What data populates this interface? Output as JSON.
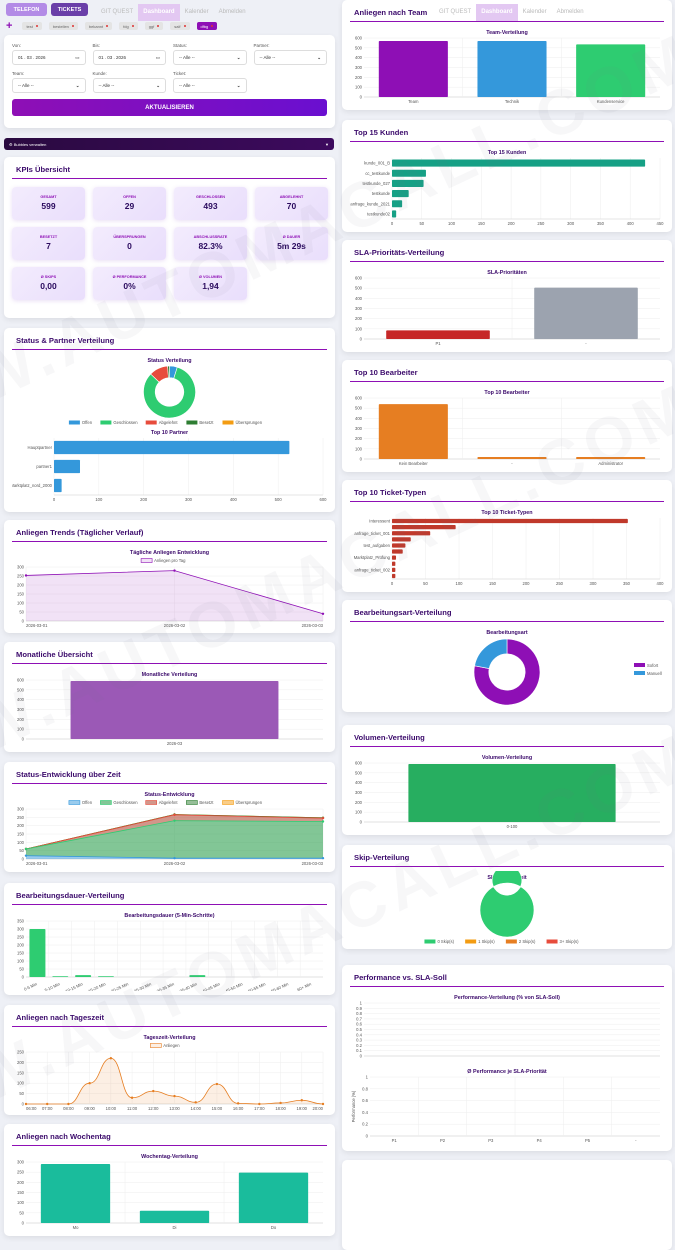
{
  "watermark": "WWW.AUTOMACALL.COM",
  "nav": {
    "telefon": "TELEFON",
    "tickets": "TICKETS",
    "links": [
      "GIT QUEST",
      "Dashboard",
      "Kalender",
      "Abmelden"
    ],
    "active": "Dashboard"
  },
  "chips": {
    "add": "+",
    "items": [
      "test",
      "bestellen",
      "bekannt",
      "fdg",
      "ggf",
      "salf",
      "dfbg"
    ],
    "active": "dfbg"
  },
  "filter": {
    "von_label": "Von:",
    "von": "01 . 03 . 2026",
    "bis_label": "Bis:",
    "bis": "01 . 03 . 2026",
    "status_label": "Status:",
    "partner_label": "Partner:",
    "team_label": "Team:",
    "kunde_label": "Kunde:",
    "ticket_label": "Ticket:",
    "all": "-- Alle --",
    "submit": "AKTUALISIEREN"
  },
  "collapse": {
    "label": "⚙ Bubbles verwalten",
    "arrow": "▼"
  },
  "kpis": {
    "title": "KPIs Übersicht",
    "items": [
      {
        "label": "Gesamt",
        "value": "599"
      },
      {
        "label": "Offen",
        "value": "29"
      },
      {
        "label": "Geschlossen",
        "value": "493"
      },
      {
        "label": "Abgelehnt",
        "value": "70"
      },
      {
        "label": "Besetzt",
        "value": "7"
      },
      {
        "label": "Übersprungen",
        "value": "0"
      },
      {
        "label": "Abschlussrate",
        "value": "82.3%"
      },
      {
        "label": "Ø Dauer",
        "value": "5m 29s"
      },
      {
        "label": "Ø Skips",
        "value": "0,00"
      },
      {
        "label": "Ø Performance",
        "value": "0%"
      },
      {
        "label": "Ø Volumen",
        "value": "1,94"
      }
    ]
  },
  "sections": {
    "status_partner": "Status & Partner Verteilung",
    "trends": "Anliegen Trends (Täglicher Verlauf)",
    "monthly": "Monatliche Übersicht",
    "status_time": "Status-Entwicklung über Zeit",
    "duration": "Bearbeitungsdauer-Verteilung",
    "daytime": "Anliegen nach Tageszeit",
    "weekday": "Anliegen nach Wochentag",
    "team": "Anliegen nach Team",
    "customers": "Top 15 Kunden",
    "sla": "SLA-Prioritäts-Verteilung",
    "agents": "Top 10 Bearbeiter",
    "tickettypes": "Top 10 Ticket-Typen",
    "mode": "Bearbeitungsart-Verteilung",
    "volume": "Volumen-Verteilung",
    "skip": "Skip-Verteilung",
    "performance": "Performance vs. SLA-Soll"
  },
  "chart_data": [
    {
      "id": "status",
      "type": "pie",
      "donut": true,
      "title": "Status Verteilung",
      "labels": [
        "Offen",
        "Geschlossen",
        "Abgelehnt",
        "Besetzt",
        "Übersprungen"
      ],
      "values": [
        29,
        493,
        70,
        7,
        0
      ],
      "colors": [
        "#3498db",
        "#2ecc71",
        "#e74c3c",
        "#2e7d32",
        "#f39c12"
      ],
      "legend": "bottom"
    },
    {
      "id": "partner",
      "type": "bar",
      "orientation": "horizontal",
      "title": "Top 10 Partner",
      "categories": [
        "Hauptpartner",
        "partner1",
        "Marktplatz_nord_2000"
      ],
      "values": [
        525,
        58,
        17
      ],
      "xlim": [
        0,
        600
      ],
      "ticks": [
        "0",
        "100",
        "200",
        "300",
        "400",
        "500",
        "600"
      ],
      "color": "#3498db"
    },
    {
      "id": "trends",
      "type": "area",
      "title": "Tägliche Anliegen Entwicklung",
      "categories": [
        "2026-03-01",
        "2026-03-02",
        "2026-03-03"
      ],
      "series": [
        {
          "name": "Anliegen pro Tag",
          "values": [
            253,
            280,
            40
          ],
          "color": "#8e0fb5",
          "fill": "rgba(142,15,181,0.12)"
        }
      ],
      "ylim": [
        0,
        300
      ],
      "ticks": [
        "0",
        "50",
        "100",
        "150",
        "200",
        "250",
        "300"
      ],
      "legend": "top"
    },
    {
      "id": "monthly",
      "type": "bar",
      "title": "Monatliche Verteilung",
      "categories": [
        "2026-03"
      ],
      "values": [
        590
      ],
      "ylim": [
        0,
        600
      ],
      "ticks": [
        "0",
        "100",
        "200",
        "300",
        "400",
        "500",
        "600"
      ],
      "color": "#9b59b6"
    },
    {
      "id": "statustime",
      "type": "area",
      "stacked": true,
      "title": "Status-Entwicklung",
      "categories": [
        "2026-03-01",
        "2026-03-02",
        "2026-03-03"
      ],
      "series": [
        {
          "name": "Offen",
          "values": [
            20,
            5,
            5
          ],
          "color": "#3498db",
          "fill": "rgba(52,152,219,0.5)"
        },
        {
          "name": "Geschlossen",
          "values": [
            40,
            225,
            220
          ],
          "color": "#2ecc71",
          "fill": "rgba(46,160,80,0.6)"
        },
        {
          "name": "Abgelehnt",
          "values": [
            0,
            35,
            20
          ],
          "color": "#e74c3c",
          "fill": "rgba(180,80,60,0.6)"
        },
        {
          "name": "Besetzt",
          "values": [
            0,
            2,
            2
          ],
          "color": "#2e7d32",
          "fill": "rgba(46,125,50,0.5)"
        },
        {
          "name": "Übersprungen",
          "values": [
            0,
            0,
            0
          ],
          "color": "#f39c12",
          "fill": "rgba(243,156,18,0.5)"
        }
      ],
      "ylim": [
        0,
        300
      ],
      "ticks": [
        "0",
        "50",
        "100",
        "150",
        "200",
        "250",
        "300"
      ],
      "legend": "top"
    },
    {
      "id": "duration",
      "type": "bar",
      "title": "Bearbeitungsdauer (5-Min-Schritte)",
      "categories": [
        "0-5 Min",
        "5-10 Min",
        "10-15 Min",
        "15-20 Min",
        "20-25 Min",
        "25-30 Min",
        "30-35 Min",
        "35-40 Min",
        "40-45 Min",
        "45-50 Min",
        "50-55 Min",
        "55-60 Min",
        "60+ Min"
      ],
      "values": [
        300,
        5,
        12,
        5,
        0,
        0,
        0,
        12,
        0,
        0,
        0,
        0,
        0
      ],
      "ylim": [
        0,
        350
      ],
      "ticks": [
        "0",
        "50",
        "100",
        "150",
        "200",
        "250",
        "300",
        "350"
      ],
      "color": "#2ecc71",
      "rotate": true
    },
    {
      "id": "daytime",
      "type": "area",
      "smooth": true,
      "title": "Tageszeit-Verteilung",
      "categories": [
        "06:00",
        "07:00",
        "08:00",
        "09:00",
        "10:00",
        "11:00",
        "12:00",
        "13:00",
        "14:00",
        "15:00",
        "16:00",
        "17:00",
        "18:00",
        "19:00",
        "20:00"
      ],
      "series": [
        {
          "name": "Anliegen",
          "values": [
            0,
            0,
            0,
            100,
            220,
            30,
            62,
            38,
            8,
            96,
            3,
            0,
            5,
            18,
            0
          ],
          "color": "#e67e22",
          "fill": "rgba(230,126,34,0.12)"
        }
      ],
      "ylim": [
        0,
        250
      ],
      "ticks": [
        "0",
        "50",
        "100",
        "150",
        "200",
        "250"
      ],
      "legend": "top"
    },
    {
      "id": "weekday",
      "type": "bar",
      "title": "Wochentag-Verteilung",
      "categories": [
        "Mo",
        "Di",
        "Do"
      ],
      "values": [
        290,
        60,
        248
      ],
      "ylim": [
        0,
        300
      ],
      "ticks": [
        "0",
        "50",
        "100",
        "150",
        "200",
        "250",
        "300"
      ],
      "color": "#1abc9c"
    },
    {
      "id": "team",
      "type": "bar",
      "title": "Team-Verteilung",
      "categories": [
        "Team",
        "Technik",
        "Kundenservice"
      ],
      "values": [
        570,
        570,
        535
      ],
      "ylim": [
        0,
        600
      ],
      "ticks": [
        "0",
        "100",
        "200",
        "300",
        "400",
        "500",
        "600"
      ],
      "colors": [
        "#8e0fb5",
        "#3498db",
        "#2ecc71"
      ]
    },
    {
      "id": "customers",
      "type": "bar",
      "orientation": "horizontal",
      "title": "Top 15 Kunden",
      "categories": [
        "kunde_001_B",
        "cc_testkunde",
        "testkunde_027",
        "testkunde",
        "anfrage_kunde_2021",
        "testkunde02"
      ],
      "values": [
        425,
        57,
        53,
        28,
        17,
        7
      ],
      "xlim": [
        0,
        450
      ],
      "ticks": [
        "0",
        "50",
        "100",
        "150",
        "200",
        "250",
        "300",
        "350",
        "400",
        "450"
      ],
      "color": "#16a085"
    },
    {
      "id": "sla",
      "type": "bar",
      "title": "SLA-Prioritäten",
      "categories": [
        "P1",
        "-"
      ],
      "values": [
        85,
        505
      ],
      "ylim": [
        0,
        600
      ],
      "ticks": [
        "0",
        "100",
        "200",
        "300",
        "400",
        "500",
        "600"
      ],
      "colors": [
        "#c62828",
        "#9ca3af"
      ]
    },
    {
      "id": "agents",
      "type": "bar",
      "title": "Top 10 Bearbeiter",
      "categories": [
        "Kein Bearbeiter",
        "-",
        "Administrator"
      ],
      "values": [
        540,
        20,
        20
      ],
      "ylim": [
        0,
        600
      ],
      "ticks": [
        "0",
        "100",
        "200",
        "300",
        "400",
        "500",
        "600"
      ],
      "color": "#e67e22"
    },
    {
      "id": "tickettypes",
      "type": "bar",
      "orientation": "horizontal",
      "title": "Top 10 Ticket-Typen",
      "categories": [
        "Interessent",
        "",
        "anfrage_ticket_001",
        "",
        "test_aufgaben",
        "",
        "Marktplatz_Prüfung",
        "",
        "anfrage_ticket_002",
        ""
      ],
      "values": [
        352,
        95,
        57,
        28,
        20,
        16,
        6,
        5,
        5,
        5
      ],
      "xlim": [
        0,
        400
      ],
      "ticks": [
        "0",
        "50",
        "100",
        "150",
        "200",
        "250",
        "300",
        "350",
        "400"
      ],
      "color": "#c0392b"
    },
    {
      "id": "mode",
      "type": "pie",
      "donut": true,
      "title": "Bearbeitungsart",
      "labels": [
        "Sofort",
        "Manuell"
      ],
      "values": [
        78,
        22
      ],
      "colors": [
        "#8e0fb5",
        "#3498db"
      ],
      "legend": "right"
    },
    {
      "id": "volume",
      "type": "bar",
      "title": "Volumen-Verteilung",
      "categories": [
        "0-100"
      ],
      "values": [
        590
      ],
      "ylim": [
        0,
        600
      ],
      "ticks": [
        "0",
        "100",
        "200",
        "300",
        "400",
        "500",
        "600"
      ],
      "color": "#27ae60"
    },
    {
      "id": "skip",
      "type": "pie",
      "donut": true,
      "title": "Skip-Häufigkeit",
      "labels": [
        "0 Skip(s)",
        "1 Skip(s)",
        "2 Skip(s)",
        "3+ Skip(s)"
      ],
      "values": [
        599,
        0,
        0,
        0
      ],
      "colors": [
        "#2ecc71",
        "#f39c12",
        "#e67e22",
        "#e74c3c"
      ],
      "legend": "bottom"
    },
    {
      "id": "perf1",
      "type": "bar",
      "title": "Performance-Verteilung (% von SLA-Soll)",
      "categories": [],
      "values": [],
      "ylim": [
        0,
        1
      ],
      "ticks": [
        "0",
        "0.1",
        "0.2",
        "0.3",
        "0.4",
        "0.5",
        "0.6",
        "0.7",
        "0.8",
        "0.9",
        "1"
      ]
    },
    {
      "id": "perf2",
      "type": "bar",
      "title": "Ø Performance je SLA-Priorität",
      "ylabel": "Performance (%)",
      "categories": [
        "P1",
        "P2",
        "P3",
        "P4",
        "P5",
        "-"
      ],
      "values": [
        0,
        0,
        0,
        0,
        0,
        0
      ],
      "ylim": [
        0,
        1
      ],
      "ticks": [
        "0",
        "0.2",
        "0.4",
        "0.6",
        "0.8",
        "1"
      ]
    }
  ]
}
